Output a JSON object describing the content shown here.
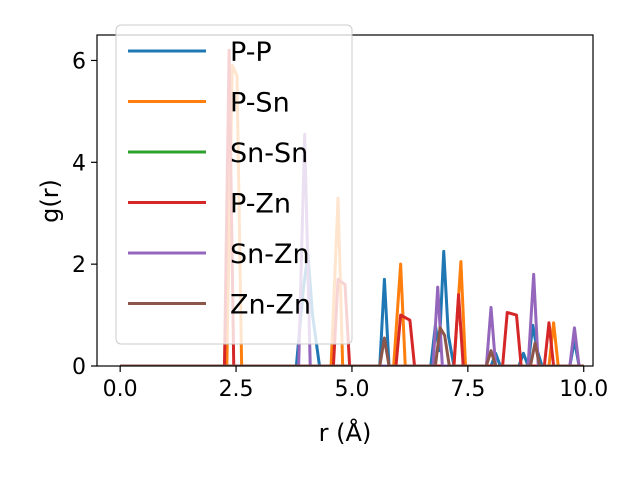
{
  "chart_data": {
    "type": "line",
    "xlabel": "r (Å)",
    "ylabel": "g(r)",
    "xlim": [
      -0.5,
      10.2
    ],
    "ylim": [
      0,
      6.5
    ],
    "xticks": [
      0.0,
      2.5,
      5.0,
      7.5,
      10.0
    ],
    "xtick_labels": [
      "0.0",
      "2.5",
      "5.0",
      "7.5",
      "10.0"
    ],
    "yticks": [
      0,
      2,
      4,
      6
    ],
    "ytick_labels": [
      "0",
      "2",
      "4",
      "6"
    ],
    "grid": false,
    "legend_position": "upper-left",
    "series": [
      {
        "name": "P-P",
        "color": "#1f77b4",
        "points": [
          [
            0,
            0
          ],
          [
            3.8,
            0
          ],
          [
            3.95,
            1.5
          ],
          [
            4.05,
            2.2
          ],
          [
            4.15,
            1.0
          ],
          [
            4.3,
            0
          ],
          [
            5.6,
            0
          ],
          [
            5.7,
            1.7
          ],
          [
            5.8,
            0
          ],
          [
            6.7,
            0
          ],
          [
            6.8,
            0.8
          ],
          [
            6.88,
            0.3
          ],
          [
            6.98,
            2.25
          ],
          [
            7.08,
            0.6
          ],
          [
            7.2,
            0
          ],
          [
            8.0,
            0
          ],
          [
            8.1,
            0.25
          ],
          [
            8.2,
            0
          ],
          [
            8.6,
            0
          ],
          [
            8.7,
            0.25
          ],
          [
            8.8,
            0
          ],
          [
            8.9,
            0.8
          ],
          [
            9.0,
            0.3
          ],
          [
            9.1,
            0
          ],
          [
            9.7,
            0
          ],
          [
            9.8,
            0.5
          ],
          [
            9.9,
            0
          ]
        ]
      },
      {
        "name": "P-Sn",
        "color": "#ff7f0e",
        "points": [
          [
            0,
            0
          ],
          [
            2.3,
            0
          ],
          [
            2.42,
            5.9
          ],
          [
            2.52,
            5.7
          ],
          [
            2.62,
            0
          ],
          [
            4.55,
            0
          ],
          [
            4.7,
            3.3
          ],
          [
            4.8,
            0
          ],
          [
            5.9,
            0
          ],
          [
            6.05,
            2.0
          ],
          [
            6.15,
            0
          ],
          [
            7.2,
            0
          ],
          [
            7.35,
            2.05
          ],
          [
            7.45,
            0
          ],
          [
            9.25,
            0
          ],
          [
            9.35,
            0.85
          ],
          [
            9.45,
            0
          ],
          [
            10.0,
            0
          ]
        ]
      },
      {
        "name": "Sn-Sn",
        "color": "#2ca02c",
        "points": [
          [
            0,
            0
          ],
          [
            10.0,
            0
          ]
        ]
      },
      {
        "name": "P-Zn",
        "color": "#d62728",
        "points": [
          [
            0,
            0
          ],
          [
            2.25,
            0
          ],
          [
            2.35,
            6.2
          ],
          [
            2.45,
            0
          ],
          [
            4.6,
            0
          ],
          [
            4.7,
            1.7
          ],
          [
            4.85,
            1.6
          ],
          [
            4.95,
            0
          ],
          [
            5.95,
            0
          ],
          [
            6.05,
            1.0
          ],
          [
            6.25,
            0.9
          ],
          [
            6.35,
            0
          ],
          [
            7.2,
            0
          ],
          [
            7.3,
            1.4
          ],
          [
            7.4,
            0
          ],
          [
            8.25,
            0
          ],
          [
            8.35,
            1.05
          ],
          [
            8.55,
            1.0
          ],
          [
            8.65,
            0
          ],
          [
            9.15,
            0
          ],
          [
            9.25,
            0.85
          ],
          [
            9.35,
            0
          ],
          [
            10.0,
            0
          ]
        ]
      },
      {
        "name": "Sn-Zn",
        "color": "#9467bd",
        "points": [
          [
            0,
            0
          ],
          [
            3.85,
            0
          ],
          [
            3.98,
            4.55
          ],
          [
            4.1,
            0
          ],
          [
            6.75,
            0
          ],
          [
            6.85,
            1.55
          ],
          [
            6.95,
            0
          ],
          [
            7.9,
            0
          ],
          [
            8.0,
            1.15
          ],
          [
            8.1,
            0
          ],
          [
            8.8,
            0
          ],
          [
            8.92,
            1.8
          ],
          [
            9.02,
            0
          ],
          [
            9.7,
            0
          ],
          [
            9.8,
            0.75
          ],
          [
            9.9,
            0
          ]
        ]
      },
      {
        "name": "Zn-Zn",
        "color": "#8c564b",
        "points": [
          [
            0,
            0
          ],
          [
            5.6,
            0
          ],
          [
            5.7,
            0.55
          ],
          [
            5.8,
            0
          ],
          [
            6.8,
            0
          ],
          [
            6.9,
            0.75
          ],
          [
            7.0,
            0.6
          ],
          [
            7.1,
            0
          ],
          [
            7.9,
            0
          ],
          [
            8.0,
            0.3
          ],
          [
            8.1,
            0
          ],
          [
            8.85,
            0
          ],
          [
            8.95,
            0.45
          ],
          [
            9.05,
            0
          ],
          [
            10.0,
            0
          ]
        ]
      }
    ]
  }
}
